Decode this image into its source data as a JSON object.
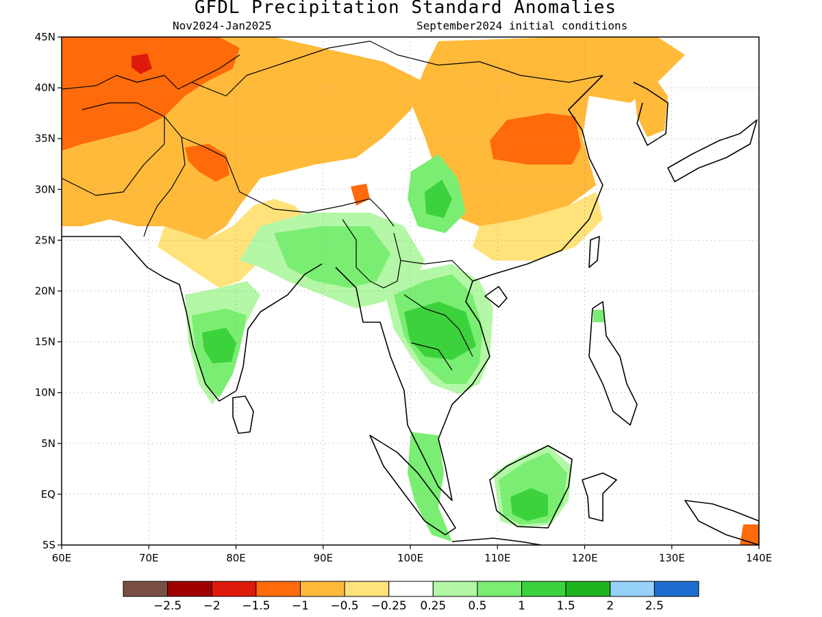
{
  "header": {
    "title": "GFDL Precipitation Standard Anomalies",
    "period": "Nov2024-Jan2025",
    "init": "September2024 initial conditions"
  },
  "axes": {
    "lon_labels": [
      "60E",
      "70E",
      "80E",
      "90E",
      "100E",
      "110E",
      "120E",
      "130E",
      "140E"
    ],
    "lon_values": [
      60,
      70,
      80,
      90,
      100,
      110,
      120,
      130,
      140
    ],
    "lat_labels": [
      "45N",
      "40N",
      "35N",
      "30N",
      "25N",
      "20N",
      "15N",
      "10N",
      "5N",
      "EQ",
      "5S"
    ],
    "lat_values": [
      45,
      40,
      35,
      30,
      25,
      20,
      15,
      10,
      5,
      0,
      -5
    ]
  },
  "legend": {
    "colors": [
      "#7a4f43",
      "#a00000",
      "#de1a0a",
      "#ff6a0a",
      "#ffba3a",
      "#ffe27a",
      "#ffffff",
      "#b4f7a6",
      "#7aee72",
      "#3cd23c",
      "#1eb41e",
      "#96d2fa",
      "#1e6ed2"
    ],
    "labels": [
      "-2.5",
      "-2",
      "-1.5",
      "-1",
      "-0.5",
      "-0.25",
      "0.25",
      "0.5",
      "1",
      "1.5",
      "2",
      "2.5"
    ]
  },
  "map": {
    "projection": "lat-lon",
    "lon_range": [
      60,
      140
    ],
    "lat_range": [
      -5,
      45
    ],
    "grid": "dotted",
    "anomaly_regions": [
      {
        "region": "Central Asia (Kazakhstan / Uzbekistan)",
        "level": "-1 to -1.5"
      },
      {
        "region": "Afghanistan / Pakistan / Iran",
        "level": "-0.5 to -1"
      },
      {
        "region": "Northern India / Tibet",
        "level": "-0.5 to -1"
      },
      {
        "region": "Central-East China",
        "level": "-1 to -1.5"
      },
      {
        "region": "Southern India",
        "level": "1 to 1.5"
      },
      {
        "region": "Bangladesh / Northeast India / Myanmar",
        "level": "0.5 to 1"
      },
      {
        "region": "Thailand / Laos / Cambodia",
        "level": "1 to 1.5"
      },
      {
        "region": "Borneo",
        "level": "1 to 1.5"
      },
      {
        "region": "Sumatra / Malaysia",
        "level": "1 to 1.5"
      }
    ]
  }
}
